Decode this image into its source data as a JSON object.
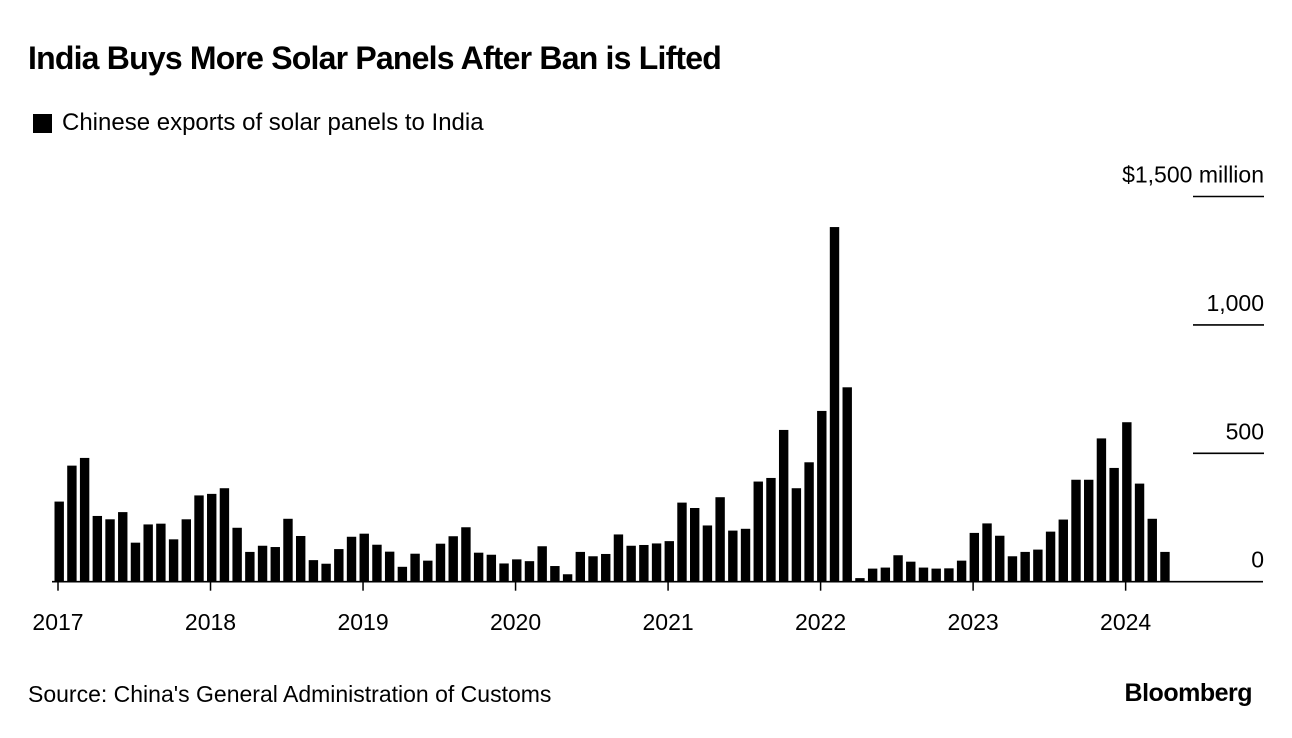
{
  "header": {
    "title": "India Buys More Solar Panels After Ban is Lifted"
  },
  "legend": {
    "label": "Chinese exports of solar panels to India",
    "swatch_color": "#000000"
  },
  "footer": {
    "source": "Source: China's General Administration of Customs",
    "brand": "Bloomberg"
  },
  "chart_data": {
    "type": "bar",
    "title": "India Buys More Solar Panels After Ban is Lifted",
    "xlabel": "",
    "ylabel": "$ million",
    "ylim": [
      0,
      1500
    ],
    "yticks": [
      0,
      500,
      1000,
      1500
    ],
    "ytick_labels": [
      "0",
      "500",
      "1,000",
      "$1,500 million"
    ],
    "xtick_labels": [
      "2017",
      "2018",
      "2019",
      "2020",
      "2021",
      "2022",
      "2023",
      "2024"
    ],
    "grid": false,
    "legend_position": "top-left",
    "bar_color": "#000000",
    "series": [
      {
        "name": "Chinese exports of solar panels to India",
        "start_month": "2017-01",
        "end_month": "2024-04",
        "values": [
          312,
          452,
          482,
          256,
          243,
          271,
          152,
          223,
          226,
          165,
          243,
          336,
          342,
          364,
          210,
          116,
          140,
          135,
          245,
          178,
          84,
          70,
          127,
          175,
          187,
          144,
          117,
          58,
          109,
          82,
          148,
          177,
          212,
          113,
          105,
          71,
          87,
          80,
          138,
          61,
          29,
          116,
          99,
          108,
          184,
          140,
          143,
          149,
          158,
          308,
          287,
          219,
          329,
          199,
          206,
          390,
          404,
          591,
          364,
          465,
          665,
          1381,
          757,
          14,
          51,
          55,
          103,
          78,
          55,
          51,
          52,
          82,
          190,
          227,
          179,
          99,
          116,
          125,
          195,
          242,
          397,
          397,
          558,
          443,
          621,
          382,
          245,
          116
        ]
      }
    ]
  }
}
